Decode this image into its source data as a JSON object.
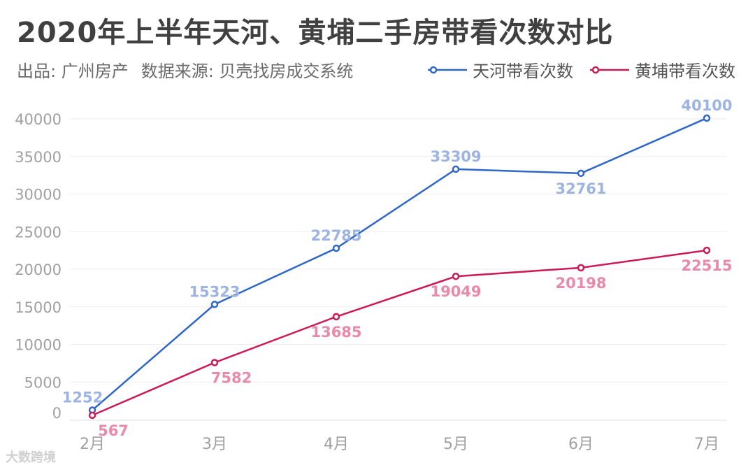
{
  "title": "2020年上半年天河、黄埔二手房带看次数对比",
  "subtitle": {
    "producer": "出品: 广州房产",
    "source": "数据来源: 贝壳找房成交系统"
  },
  "watermark": "大数跨境",
  "colors": {
    "tianhe": "#2f67c9",
    "tianhe_label": "#9db4e3",
    "huangpu": "#cc1a55",
    "huangpu_label": "#e88aa8",
    "axis_text": "#a0a0a0",
    "grid": "#eeeeee"
  },
  "chart_data": {
    "type": "line",
    "categories": [
      "2月",
      "3月",
      "4月",
      "5月",
      "6月",
      "7月"
    ],
    "ylim": [
      0,
      40000
    ],
    "yticks": [
      "0",
      "5000",
      "10000",
      "15000",
      "20000",
      "25000",
      "30000",
      "35000",
      "40000"
    ],
    "ytick_values": [
      0,
      5000,
      10000,
      15000,
      20000,
      25000,
      30000,
      35000,
      40000
    ],
    "legend_position": "top-right",
    "grid": true,
    "series": [
      {
        "name": "天河带看次数",
        "values": [
          1252,
          15323,
          22785,
          33309,
          32761,
          40100
        ]
      },
      {
        "name": "黄埔带看次数",
        "values": [
          567,
          7582,
          13685,
          19049,
          20198,
          22515
        ]
      }
    ]
  }
}
